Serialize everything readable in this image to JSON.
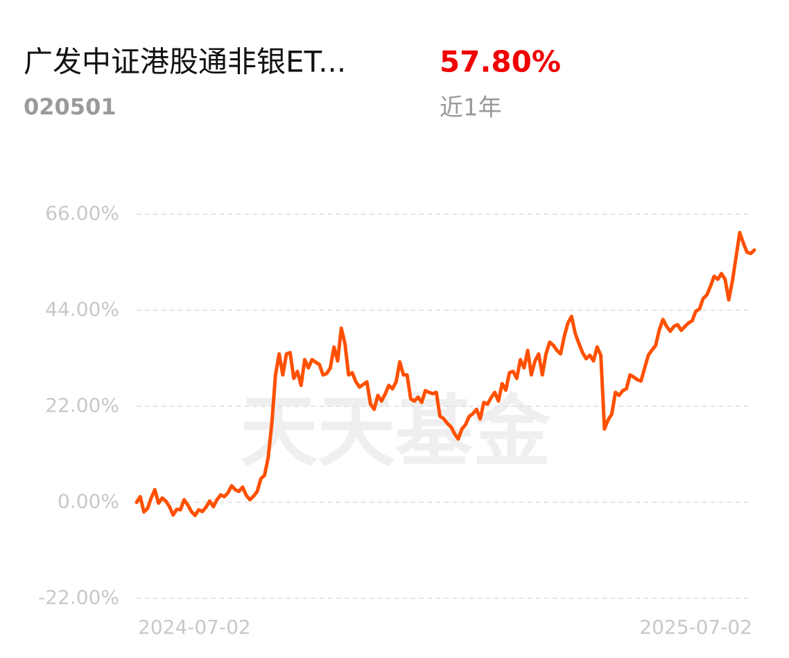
{
  "chart_data": {
    "type": "line",
    "title": "广发中证港股通非银ET...",
    "subtitle": "020501",
    "annotations": [
      "57.80%",
      "近1年",
      "天天基金"
    ],
    "color": "#ff5000",
    "grid": true,
    "ylim": [
      -22,
      66
    ],
    "yticks": [
      {
        "value": -22,
        "label": "-22.00%"
      },
      {
        "value": 0,
        "label": "0.00%"
      },
      {
        "value": 22,
        "label": "22.00%"
      },
      {
        "value": 44,
        "label": "44.00%"
      },
      {
        "value": 66,
        "label": "66.00%"
      }
    ],
    "categories": [
      "2024-07-02",
      null,
      null,
      null,
      null,
      null,
      null,
      null,
      null,
      null,
      null,
      null,
      null,
      null,
      null,
      null,
      null,
      null,
      null,
      null,
      null,
      null,
      null,
      null,
      null,
      null,
      null,
      null,
      null,
      null,
      null,
      null,
      null,
      null,
      null,
      null,
      null,
      null,
      null,
      null,
      null,
      null,
      null,
      null,
      null,
      null,
      null,
      null,
      null,
      null,
      null,
      null,
      null,
      null,
      null,
      null,
      null,
      null,
      null,
      null,
      null,
      null,
      null,
      null,
      null,
      null,
      null,
      null,
      null,
      null,
      null,
      null,
      null,
      null,
      null,
      null,
      null,
      null,
      null,
      null,
      null,
      null,
      null,
      null,
      null,
      null,
      null,
      null,
      null,
      null,
      null,
      null,
      null,
      null,
      null,
      null,
      null,
      null,
      null,
      null,
      null,
      null,
      null,
      null,
      null,
      null,
      null,
      null,
      null,
      null,
      null,
      null,
      null,
      null,
      null,
      null,
      null,
      null,
      null,
      null,
      null,
      null,
      null,
      null,
      null,
      null,
      null,
      null,
      null,
      null,
      null,
      null,
      null,
      null,
      null,
      null,
      null,
      null,
      null,
      null,
      null,
      null,
      null,
      null,
      null,
      null,
      null,
      null,
      null,
      null,
      null,
      null,
      null,
      null,
      null,
      null,
      null,
      null,
      null,
      null,
      null,
      null,
      null,
      null,
      null,
      null,
      null,
      null,
      null,
      "2025-07-02"
    ],
    "values": [
      0,
      1.3,
      -2.2,
      -1.4,
      1.0,
      2.9,
      -0.2,
      1.0,
      0.3,
      -1.0,
      -2.9,
      -1.6,
      -1.7,
      0.6,
      -0.6,
      -2.1,
      -3.0,
      -1.7,
      -2.1,
      -1.1,
      0.3,
      -1.0,
      0.6,
      1.7,
      1.3,
      2.2,
      3.8,
      2.9,
      2.5,
      3.5,
      1.6,
      0.6,
      1.4,
      2.5,
      5.4,
      6.2,
      10.2,
      18.1,
      29.2,
      34.0,
      29.2,
      34.0,
      34.3,
      28.4,
      30.0,
      26.8,
      32.7,
      30.8,
      32.7,
      32.1,
      31.6,
      29.2,
      29.5,
      30.8,
      35.6,
      32.4,
      39.9,
      36.4,
      29.2,
      29.7,
      27.6,
      26.4,
      27.0,
      27.6,
      22.5,
      21.3,
      24.5,
      23.2,
      24.8,
      26.8,
      26.0,
      27.6,
      32.2,
      29.2,
      29.2,
      23.7,
      23.2,
      24.1,
      22.9,
      25.6,
      25.2,
      24.9,
      25.2,
      19.7,
      19.2,
      18.1,
      17.3,
      15.7,
      14.5,
      16.8,
      17.8,
      19.7,
      20.3,
      21.3,
      19.1,
      22.9,
      22.5,
      24.0,
      25.2,
      23.2,
      27.2,
      25.7,
      29.7,
      30.0,
      28.4,
      32.7,
      30.8,
      34.8,
      29.2,
      32.4,
      34.0,
      29.2,
      34.0,
      36.7,
      36.0,
      34.8,
      34.0,
      38.0,
      41.1,
      42.6,
      38.7,
      36.4,
      34.3,
      32.9,
      33.7,
      32.4,
      35.6,
      33.7,
      16.8,
      18.9,
      20.2,
      25.2,
      24.5,
      25.6,
      26.0,
      29.2,
      28.7,
      28.1,
      27.8,
      30.8,
      33.7,
      34.9,
      35.9,
      39.5,
      41.9,
      40.3,
      39.2,
      40.3,
      40.7,
      39.4,
      40.3,
      41.1,
      41.6,
      43.8,
      44.3,
      46.7,
      47.5,
      49.5,
      51.8,
      51.1,
      52.4,
      51.1,
      46.4,
      50.7,
      56.2,
      61.8,
      59.4,
      57.3,
      57.0,
      57.8
    ]
  }
}
